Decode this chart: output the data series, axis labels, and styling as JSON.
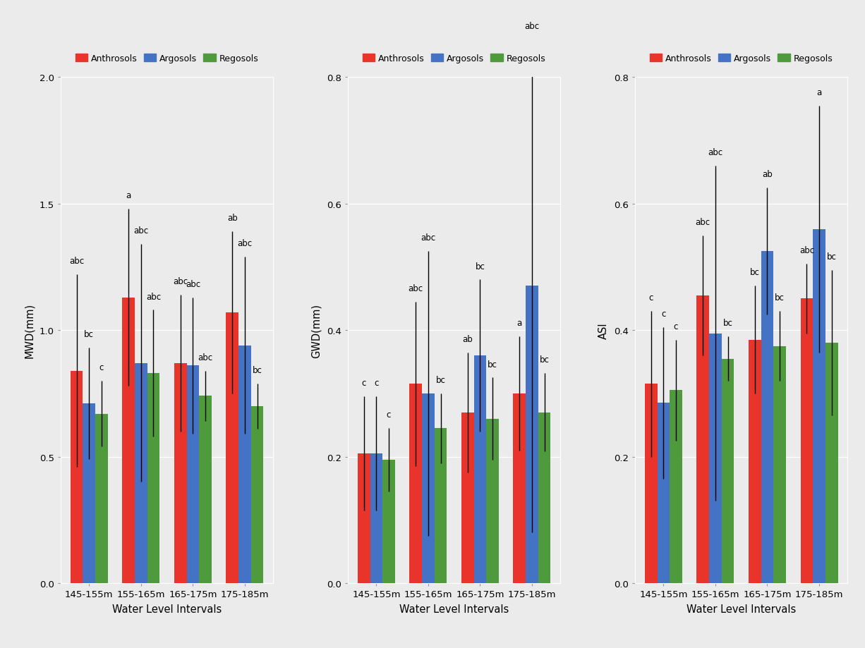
{
  "categories": [
    "145-155m",
    "155-165m",
    "165-175m",
    "175-185m"
  ],
  "colors": {
    "Anthrosols": "#E8342A",
    "Argosols": "#4472C4",
    "Regosols": "#4E9A3C"
  },
  "legend_labels": [
    "Anthrosols",
    "Argosols",
    "Regosols"
  ],
  "background_color": "#EBEBEB",
  "xlabel": "Water Level Intervals",
  "plots": [
    {
      "ylabel": "MWD(mm)",
      "ylim": [
        0.0,
        2.0
      ],
      "yticks": [
        0.0,
        0.5,
        1.0,
        1.5,
        2.0
      ],
      "ytick_labels": [
        "0.0",
        "0.5",
        "1.0",
        "1.5",
        "2.0"
      ],
      "bars": {
        "Anthrosols": [
          0.84,
          1.13,
          0.87,
          1.07
        ],
        "Argosols": [
          0.71,
          0.87,
          0.86,
          0.94
        ],
        "Regosols": [
          0.67,
          0.83,
          0.74,
          0.7
        ]
      },
      "errors": {
        "Anthrosols": [
          0.38,
          0.35,
          0.27,
          0.32
        ],
        "Argosols": [
          0.22,
          0.47,
          0.27,
          0.35
        ],
        "Regosols": [
          0.13,
          0.25,
          0.1,
          0.09
        ]
      },
      "sig_labels": [
        [
          "abc",
          "bc",
          "c"
        ],
        [
          "a",
          "abc",
          "abc"
        ],
        [
          "abc",
          "abc",
          "abc"
        ],
        [
          "ab",
          "abc",
          "bc"
        ]
      ]
    },
    {
      "ylabel": "GWD(mm)",
      "ylim": [
        0.0,
        0.8
      ],
      "yticks": [
        0.0,
        0.2,
        0.4,
        0.6,
        0.8
      ],
      "ytick_labels": [
        "0.0",
        "0.2",
        "0.4",
        "0.6",
        "0.8"
      ],
      "bars": {
        "Anthrosols": [
          0.205,
          0.315,
          0.27,
          0.3
        ],
        "Argosols": [
          0.205,
          0.3,
          0.36,
          0.47
        ],
        "Regosols": [
          0.195,
          0.245,
          0.26,
          0.27
        ]
      },
      "errors": {
        "Anthrosols": [
          0.09,
          0.13,
          0.095,
          0.09
        ],
        "Argosols": [
          0.09,
          0.225,
          0.12,
          0.39
        ],
        "Regosols": [
          0.05,
          0.055,
          0.065,
          0.062
        ]
      },
      "sig_labels": [
        [
          "c",
          "c",
          "c"
        ],
        [
          "abc",
          "abc",
          "bc"
        ],
        [
          "ab",
          "bc",
          "bc"
        ],
        [
          "a",
          "abc",
          "bc"
        ]
      ]
    },
    {
      "ylabel": "ASI",
      "ylim": [
        0.0,
        0.8
      ],
      "yticks": [
        0.0,
        0.2,
        0.4,
        0.6,
        0.8
      ],
      "ytick_labels": [
        "0.0",
        "0.2",
        "0.4",
        "0.6",
        "0.8"
      ],
      "bars": {
        "Anthrosols": [
          0.315,
          0.455,
          0.385,
          0.45
        ],
        "Argosols": [
          0.285,
          0.395,
          0.525,
          0.56
        ],
        "Regosols": [
          0.305,
          0.355,
          0.375,
          0.38
        ]
      },
      "errors": {
        "Anthrosols": [
          0.115,
          0.095,
          0.085,
          0.055
        ],
        "Argosols": [
          0.12,
          0.265,
          0.1,
          0.195
        ],
        "Regosols": [
          0.08,
          0.035,
          0.055,
          0.115
        ]
      },
      "sig_labels": [
        [
          "c",
          "c",
          "c"
        ],
        [
          "abc",
          "abc",
          "bc"
        ],
        [
          "bc",
          "ab",
          "bc"
        ],
        [
          "abc",
          "a",
          "bc"
        ]
      ]
    }
  ]
}
